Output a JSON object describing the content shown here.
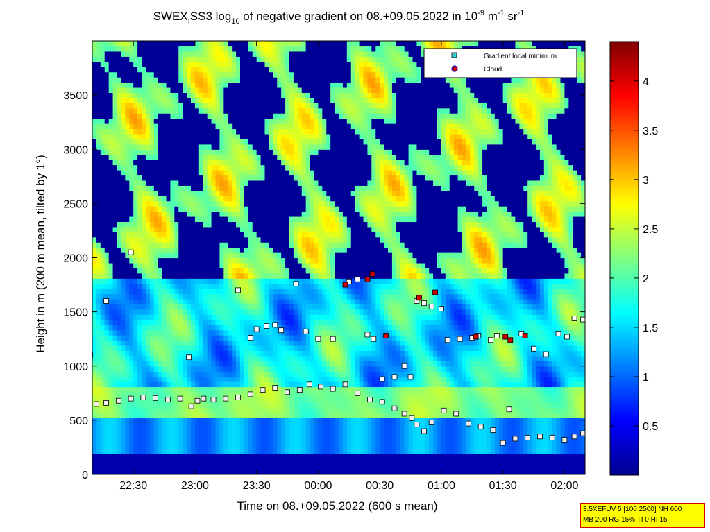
{
  "chart_data": {
    "type": "heatmap",
    "title": {
      "parts": [
        "SWEX",
        "I",
        "SS3 log",
        "10",
        " of negative gradient on 08.+09.05.2022 in 10",
        "-9",
        " m",
        "-1",
        " sr",
        "-1"
      ]
    },
    "xlabel": "Time on 08.+09.05.2022 (600 s mean)",
    "ylabel": "Height in m (200 m mean, tilted by 1°)",
    "x_ticks": [
      "22:30",
      "23:00",
      "23:30",
      "00:00",
      "00:30",
      "01:00",
      "01:30",
      "02:00"
    ],
    "x_tick_hours": [
      -1.5,
      -1.0,
      -0.5,
      0.0,
      0.5,
      1.0,
      1.5,
      2.0
    ],
    "xlim": [
      "22:10",
      "02:10"
    ],
    "y_ticks": [
      0,
      500,
      1000,
      1500,
      2000,
      2500,
      3000,
      3500
    ],
    "ylim": [
      0,
      4000
    ],
    "colorbar": {
      "ticks": [
        "0.5",
        "1",
        "1.5",
        "2",
        "2.5",
        "3",
        "3.5",
        "4"
      ],
      "tick_values": [
        0.5,
        1,
        1.5,
        2,
        2.5,
        3,
        3.5,
        4
      ],
      "range": [
        0,
        4.4
      ],
      "colormap": "jet"
    },
    "legend": {
      "position": "top-right",
      "entries": [
        {
          "label": "Gradient local minimum",
          "marker": "square",
          "color": "#33cccc"
        },
        {
          "label": "Cloud",
          "marker": "circle",
          "color": "#cc0000"
        }
      ]
    },
    "series": [
      {
        "name": "Gradient local minimum",
        "x": [
          -1.8,
          -1.72,
          -1.62,
          -1.52,
          -1.42,
          -1.32,
          -1.22,
          -1.12,
          -1.03,
          -0.98,
          -0.93,
          -0.85,
          -0.75,
          -0.65,
          -0.55,
          -0.45,
          -0.35,
          -0.25,
          -0.15,
          -0.07,
          0.02,
          0.12,
          0.22,
          0.32,
          0.42,
          0.52,
          0.62,
          0.7,
          0.76,
          0.8,
          0.86,
          0.92,
          1.02,
          1.12,
          1.22,
          1.32,
          1.42,
          1.5,
          1.6,
          1.7,
          1.8,
          1.9,
          2.0,
          2.08,
          2.15
        ],
        "y": [
          650,
          660,
          680,
          700,
          710,
          705,
          690,
          700,
          630,
          680,
          700,
          690,
          700,
          710,
          740,
          780,
          800,
          760,
          780,
          830,
          810,
          790,
          830,
          750,
          690,
          670,
          610,
          560,
          520,
          460,
          400,
          480,
          590,
          560,
          470,
          440,
          410,
          290,
          330,
          340,
          350,
          340,
          320,
          350,
          380
        ]
      },
      {
        "name": "Gradient local minimum (upper)",
        "x": [
          -2.0,
          -1.9,
          -1.85,
          -1.72,
          -1.52,
          -1.05,
          -0.65,
          -0.55,
          -0.5,
          -0.42,
          -0.35,
          -0.3,
          -0.18,
          -0.1,
          0.0,
          0.12,
          0.25,
          0.32,
          0.4,
          0.45,
          0.52,
          0.62,
          0.7,
          0.75,
          0.8,
          0.86,
          0.92,
          1.0,
          1.05,
          1.15,
          1.25,
          1.3,
          1.4,
          1.45,
          1.55,
          1.65,
          1.75,
          1.85,
          1.95,
          2.02,
          2.08,
          2.15
        ],
        "y": [
          1640,
          1500,
          1100,
          1600,
          2050,
          1080,
          1700,
          1260,
          1340,
          1370,
          1380,
          1330,
          1760,
          1320,
          1250,
          1250,
          1780,
          1800,
          1290,
          1250,
          880,
          900,
          1000,
          900,
          1600,
          1580,
          1550,
          1530,
          1240,
          1250,
          1260,
          1280,
          1240,
          1280,
          600,
          1300,
          1160,
          1110,
          1300,
          1270,
          1440,
          1430
        ]
      },
      {
        "name": "Cloud",
        "x": [
          0.22,
          0.4,
          0.44,
          0.55,
          0.82,
          0.95,
          1.28,
          1.52,
          1.56,
          1.68
        ],
        "y": [
          1750,
          1800,
          1850,
          1280,
          1630,
          1680,
          1270,
          1270,
          1240,
          1280
        ]
      }
    ]
  },
  "info_box": {
    "line1": "3.5XEFUV 5 [100 2500] NH 600",
    "line2": "MB 200 RG 15% TI 0 HI 15"
  },
  "colors": {
    "plot_background": "#00008f",
    "marker_fill": "#ffffff",
    "info_box_bg": "#ffff00",
    "info_box_border": "#d40000"
  }
}
